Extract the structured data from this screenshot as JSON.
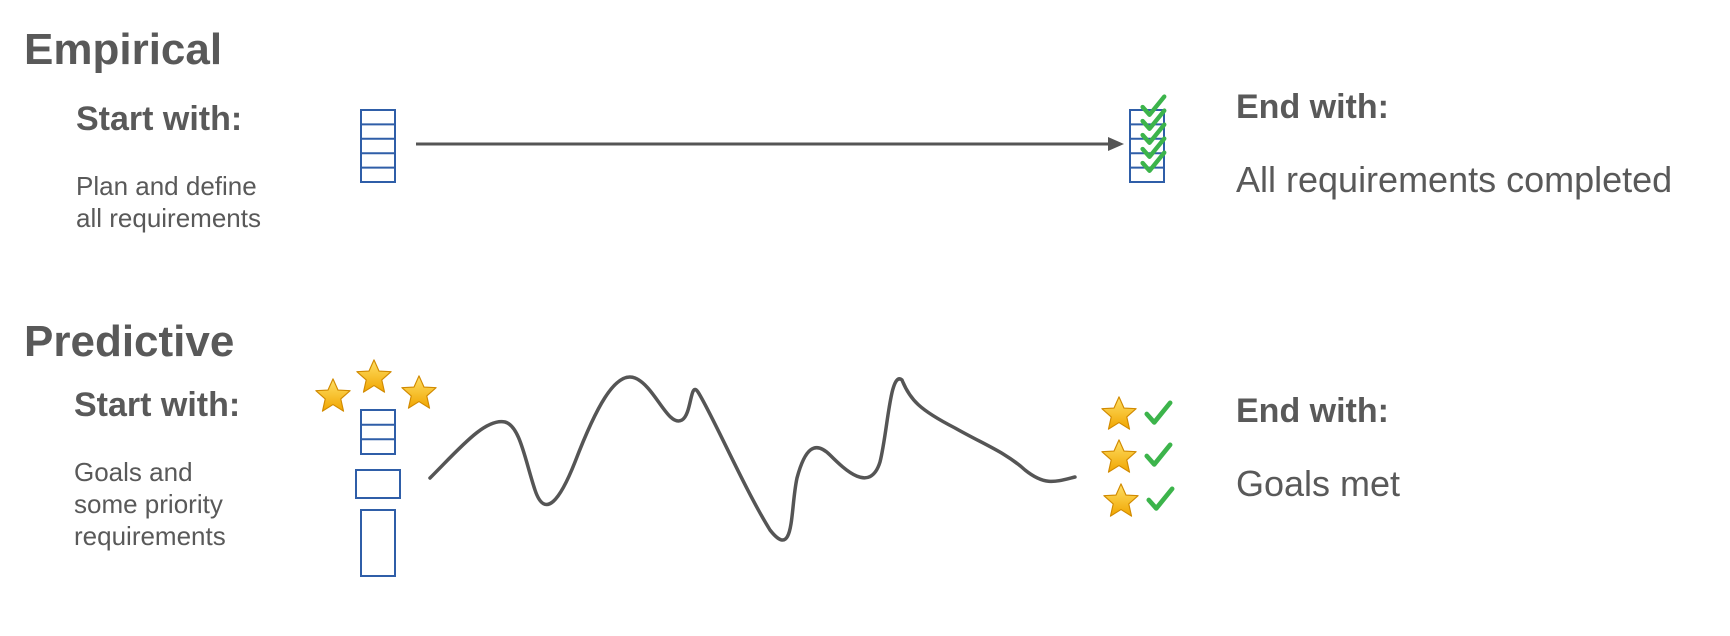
{
  "empirical": {
    "title": "Empirical",
    "start_label": "Start with:",
    "start_desc": "Plan and define\nall requirements",
    "end_label": "End with:",
    "end_desc": "All requirements completed"
  },
  "predictive": {
    "title": "Predictive",
    "start_label": "Start with:",
    "start_desc": "Goals and\nsome priority\nrequirements",
    "end_label": "End with:",
    "end_desc": "Goals met"
  },
  "colors": {
    "text": "#595959",
    "box_stroke": "#2f5ea8",
    "arrow": "#555555",
    "check": "#3cb44b",
    "star": "#f5b800"
  },
  "icons": [
    "requirements-stack-icon",
    "checkmark-icon",
    "star-icon",
    "arrow-icon",
    "wavy-path-icon"
  ]
}
